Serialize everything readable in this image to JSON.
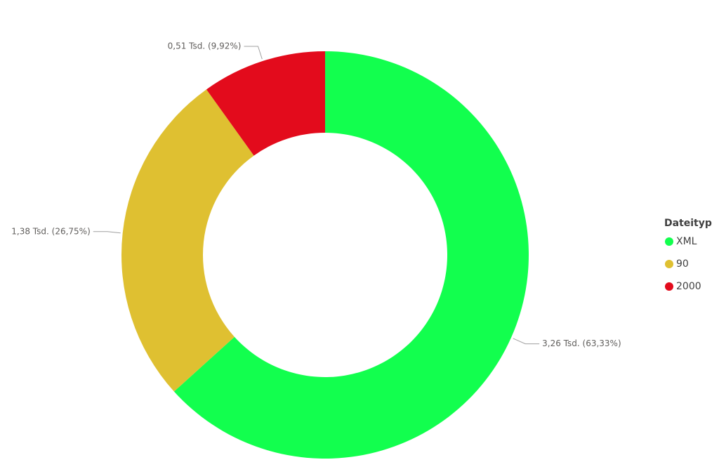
{
  "chart_data": {
    "type": "donut",
    "categories": [
      "XML",
      "90",
      "2000"
    ],
    "values": [
      3.26,
      1.38,
      0.51
    ],
    "value_labels": [
      "3,26 Tsd. (63,33%)",
      "1,38 Tsd. (26,75%)",
      "0,51 Tsd. (9,92%)"
    ],
    "colors": [
      "#12ff4e",
      "#dfc031",
      "#e30b1c"
    ],
    "legend_title": "Dateityp",
    "legend": "right"
  }
}
